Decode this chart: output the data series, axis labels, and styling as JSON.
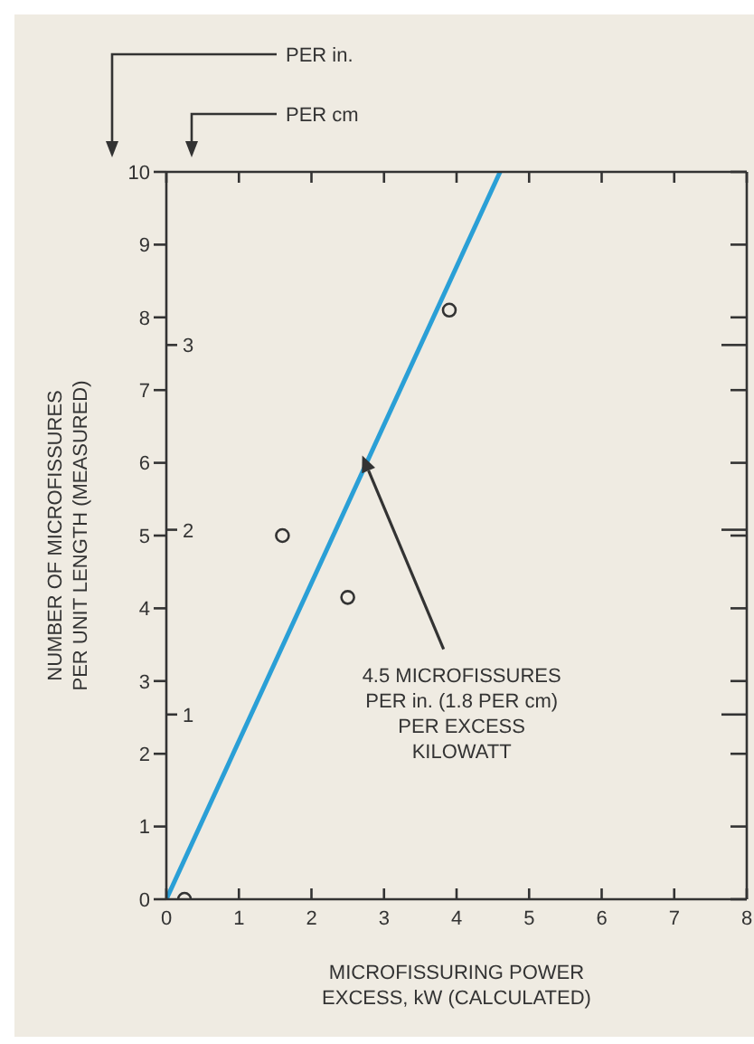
{
  "chart_data": {
    "type": "scatter",
    "xlabel": "MICROFISSURING POWER\nEXCESS, kW (CALCULATED)",
    "ylabel": "NUMBER OF MICROFISSURES\nPER UNIT LENGTH (MEASURED)",
    "xlim": [
      0,
      8
    ],
    "xticks": [
      0,
      1,
      2,
      3,
      4,
      5,
      6,
      7,
      8
    ],
    "ylim": [
      0,
      10
    ],
    "yticks": [
      0,
      1,
      2,
      3,
      4,
      5,
      6,
      7,
      8,
      9,
      10
    ],
    "y2lim": [
      0,
      3.937
    ],
    "y2ticks": [
      1,
      2,
      3
    ],
    "marker": "circle",
    "grid": false,
    "legend": false,
    "series": [
      {
        "color": "#333333",
        "x": [
          0.25,
          1.6,
          2.5,
          3.9
        ],
        "values": [
          0,
          5,
          4.15,
          8.1
        ]
      },
      {
        "type": "line",
        "marker": "none",
        "color": "#2a9fd6",
        "x": [
          0,
          4.6
        ],
        "values": [
          0,
          10
        ]
      }
    ],
    "annotations": [
      "PER in.",
      "PER cm",
      {
        "text": "4.5 MICROFISSURES\nPER in. (1.8 PER cm)\nPER EXCESS\nKILOWATT",
        "x": 2.7,
        "y": 6.1
      }
    ]
  }
}
